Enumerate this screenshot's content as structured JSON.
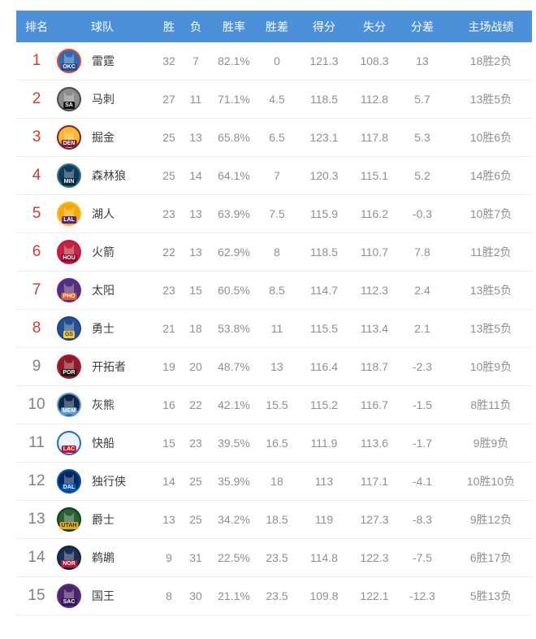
{
  "table": {
    "columns": [
      "排名",
      "球队",
      "胜",
      "负",
      "胜率",
      "胜差",
      "得分",
      "失分",
      "分差",
      "主场战绩"
    ],
    "header_bg": "#4b90d8",
    "rank_highlight_color": "#d43b2f",
    "rank_normal_color": "#828282",
    "rows": [
      {
        "rank": "1",
        "highlight": true,
        "team": "雷霆",
        "abbr": "OKC",
        "logo": {
          "ring": "#e8432c",
          "bg": "#2f6bb5",
          "label": "#1d4f91",
          "label_text": "#ffffff"
        },
        "wins": "32",
        "losses": "7",
        "win_pct": "82.1%",
        "gb": "0",
        "pf": "121.3",
        "pa": "108.3",
        "diff": "13",
        "home": "18胜2负"
      },
      {
        "rank": "2",
        "highlight": true,
        "team": "马刺",
        "abbr": "SA",
        "logo": {
          "ring": "#4a4a4a",
          "bg": "#8c8c8c",
          "label": "#111111",
          "label_text": "#ffffff"
        },
        "wins": "27",
        "losses": "11",
        "win_pct": "71.1%",
        "gb": "4.5",
        "pf": "118.5",
        "pa": "112.8",
        "diff": "5.7",
        "home": "13胜5负"
      },
      {
        "rank": "3",
        "highlight": true,
        "team": "掘金",
        "abbr": "DEN",
        "logo": {
          "ring": "#7a1f3d",
          "bg": "#fdb927",
          "label": "#7a1f3d",
          "label_text": "#ffffff"
        },
        "wins": "25",
        "losses": "13",
        "win_pct": "65.8%",
        "gb": "6.5",
        "pf": "123.1",
        "pa": "117.8",
        "diff": "5.3",
        "home": "10胜6负"
      },
      {
        "rank": "4",
        "highlight": true,
        "team": "森林狼",
        "abbr": "MIN",
        "logo": {
          "ring": "#2e7d6b",
          "bg": "#123a63",
          "label": "#0c2340",
          "label_text": "#ffffff"
        },
        "wins": "25",
        "losses": "14",
        "win_pct": "64.1%",
        "gb": "7",
        "pf": "120.3",
        "pa": "115.1",
        "diff": "5.2",
        "home": "14胜6负"
      },
      {
        "rank": "5",
        "highlight": true,
        "team": "湖人",
        "abbr": "LAL",
        "logo": {
          "ring": "#fdb927",
          "bg": "#f2a900",
          "label": "#552583",
          "label_text": "#ffffff"
        },
        "wins": "23",
        "losses": "13",
        "win_pct": "63.9%",
        "gb": "7.5",
        "pf": "115.9",
        "pa": "116.2",
        "diff": "-0.3",
        "home": "10胜7负"
      },
      {
        "rank": "6",
        "highlight": true,
        "team": "火箭",
        "abbr": "HOU",
        "logo": {
          "ring": "#ce1141",
          "bg": "#c2263d",
          "label": "#8d0f2d",
          "label_text": "#ffffff"
        },
        "wins": "22",
        "losses": "13",
        "win_pct": "62.9%",
        "gb": "8",
        "pf": "118.5",
        "pa": "110.7",
        "diff": "7.8",
        "home": "11胜2负"
      },
      {
        "rank": "7",
        "highlight": true,
        "team": "太阳",
        "abbr": "PHO",
        "logo": {
          "ring": "#5f259f",
          "bg": "#53307c",
          "label": "#e56020",
          "label_text": "#ffffff"
        },
        "wins": "23",
        "losses": "15",
        "win_pct": "60.5%",
        "gb": "8.5",
        "pf": "114.7",
        "pa": "112.3",
        "diff": "2.4",
        "home": "13胜5负"
      },
      {
        "rank": "8",
        "highlight": true,
        "team": "勇士",
        "abbr": "GS",
        "logo": {
          "ring": "#1d428a",
          "bg": "#24508f",
          "label": "#ffc72c",
          "label_text": "#1d428a"
        },
        "wins": "21",
        "losses": "18",
        "win_pct": "53.8%",
        "gb": "11",
        "pf": "115.5",
        "pa": "113.4",
        "diff": "2.1",
        "home": "13胜5负"
      },
      {
        "rank": "9",
        "highlight": false,
        "team": "开拓者",
        "abbr": "POR",
        "logo": {
          "ring": "#b01c2e",
          "bg": "#8e1b28",
          "label": "#1a1a1a",
          "label_text": "#ffffff"
        },
        "wins": "19",
        "losses": "20",
        "win_pct": "48.7%",
        "gb": "13",
        "pf": "116.4",
        "pa": "118.7",
        "diff": "-2.3",
        "home": "10胜9负"
      },
      {
        "rank": "10",
        "highlight": false,
        "team": "灰熊",
        "abbr": "MEM",
        "logo": {
          "ring": "#5d9ad3",
          "bg": "#12264a",
          "label": "#5d9ad3",
          "label_text": "#ffffff"
        },
        "wins": "16",
        "losses": "22",
        "win_pct": "42.1%",
        "gb": "15.5",
        "pf": "115.2",
        "pa": "116.7",
        "diff": "-1.5",
        "home": "8胜11负"
      },
      {
        "rank": "11",
        "highlight": false,
        "team": "快船",
        "abbr": "LAC",
        "logo": {
          "ring": "#1d6cc9",
          "bg": "#e8f0f9",
          "label": "#c8102e",
          "label_text": "#ffffff"
        },
        "wins": "15",
        "losses": "23",
        "win_pct": "39.5%",
        "gb": "16.5",
        "pf": "111.9",
        "pa": "113.6",
        "diff": "-1.7",
        "home": "9胜9负"
      },
      {
        "rank": "12",
        "highlight": false,
        "team": "独行侠",
        "abbr": "DAL",
        "logo": {
          "ring": "#0053bc",
          "bg": "#00285e",
          "label": "#0053bc",
          "label_text": "#ffffff"
        },
        "wins": "14",
        "losses": "25",
        "win_pct": "35.9%",
        "gb": "18",
        "pf": "113",
        "pa": "117.1",
        "diff": "-4.1",
        "home": "10胜10负"
      },
      {
        "rank": "13",
        "highlight": false,
        "team": "爵士",
        "abbr": "UTAH",
        "logo": {
          "ring": "#00471b",
          "bg": "#2d5f34",
          "label": "#f9a01b",
          "label_text": "#00471b"
        },
        "wins": "13",
        "losses": "25",
        "win_pct": "34.2%",
        "gb": "18.5",
        "pf": "119",
        "pa": "127.3",
        "diff": "-8.3",
        "home": "9胜12负"
      },
      {
        "rank": "14",
        "highlight": false,
        "team": "鹈鹕",
        "abbr": "NOR",
        "logo": {
          "ring": "#0c2340",
          "bg": "#1b3054",
          "label": "#c8102e",
          "label_text": "#ffffff"
        },
        "wins": "9",
        "losses": "31",
        "win_pct": "22.5%",
        "gb": "23.5",
        "pf": "114.8",
        "pa": "122.3",
        "diff": "-7.5",
        "home": "6胜17负"
      },
      {
        "rank": "15",
        "highlight": false,
        "team": "国王",
        "abbr": "SAC",
        "logo": {
          "ring": "#5a2d81",
          "bg": "#4b2569",
          "label": "#33175c",
          "label_text": "#ffffff"
        },
        "wins": "8",
        "losses": "30",
        "win_pct": "21.1%",
        "gb": "23.5",
        "pf": "109.8",
        "pa": "122.1",
        "diff": "-12.3",
        "home": "5胜13负"
      }
    ]
  }
}
